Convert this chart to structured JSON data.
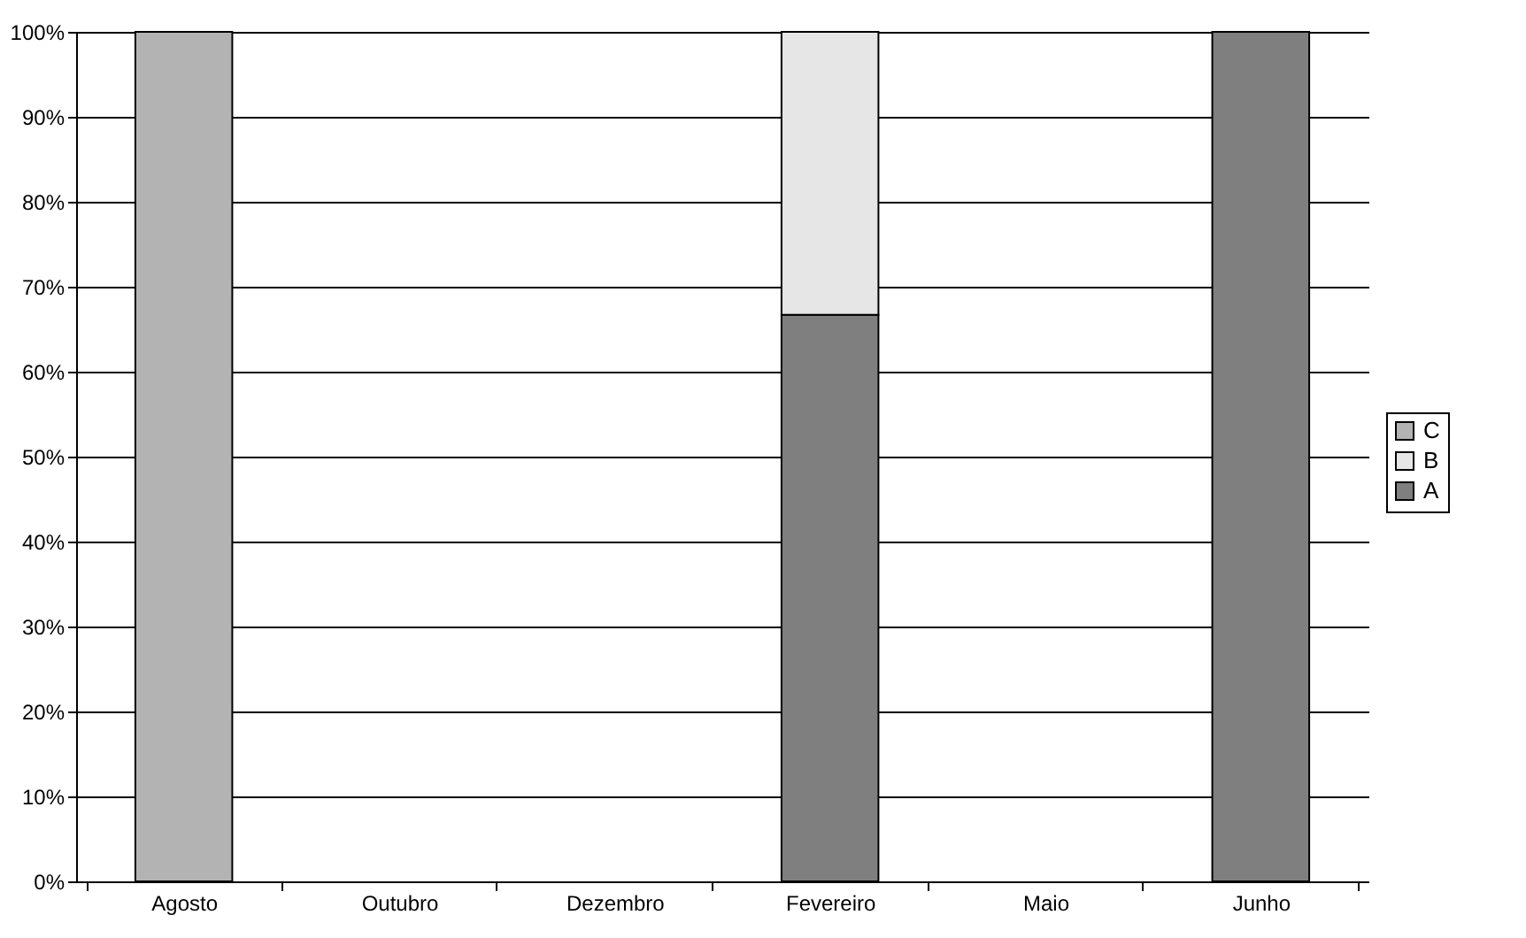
{
  "chart_data": {
    "type": "bar",
    "stacked": true,
    "categories": [
      "Agosto",
      "Outubro",
      "Dezembro",
      "Fevereiro",
      "Maio",
      "Junho"
    ],
    "series": [
      {
        "name": "A",
        "color": "#7f7f7f",
        "values": [
          null,
          null,
          null,
          66.7,
          null,
          100
        ]
      },
      {
        "name": "B",
        "color": "#e6e6e6",
        "values": [
          null,
          null,
          null,
          33.3,
          null,
          null
        ]
      },
      {
        "name": "C",
        "color": "#b3b3b3",
        "values": [
          100,
          null,
          null,
          null,
          null,
          null
        ]
      }
    ],
    "ylim": [
      0,
      100
    ],
    "yticks": [
      {
        "value": 0,
        "label": "0%"
      },
      {
        "value": 10,
        "label": "10%"
      },
      {
        "value": 20,
        "label": "20%"
      },
      {
        "value": 30,
        "label": "30%"
      },
      {
        "value": 40,
        "label": "40%"
      },
      {
        "value": 50,
        "label": "50%"
      },
      {
        "value": 60,
        "label": "60%"
      },
      {
        "value": 70,
        "label": "70%"
      },
      {
        "value": 80,
        "label": "80%"
      },
      {
        "value": 90,
        "label": "90%"
      },
      {
        "value": 100,
        "label": "100%"
      }
    ],
    "grid": "y",
    "legend": "right"
  }
}
